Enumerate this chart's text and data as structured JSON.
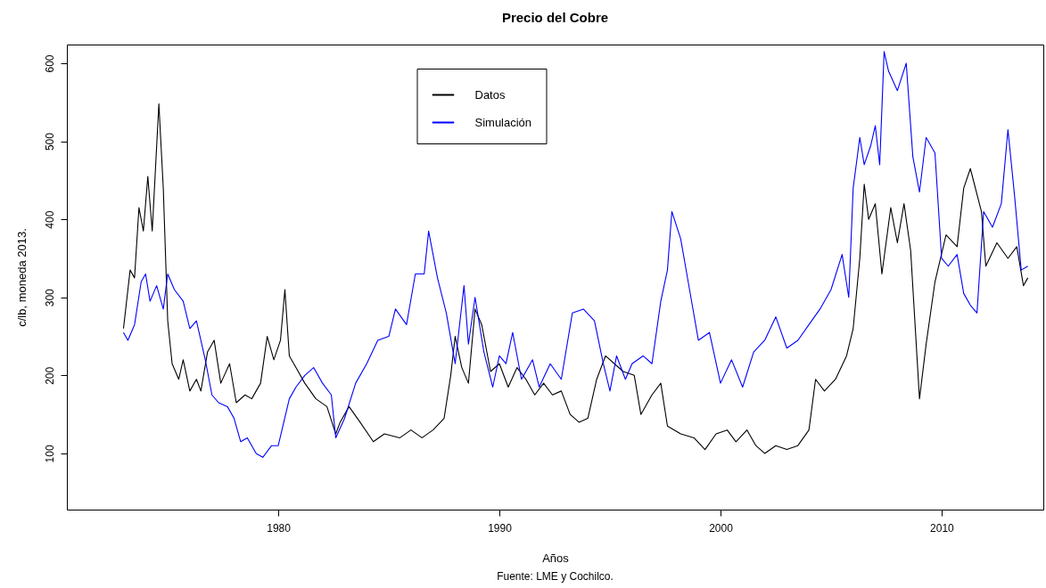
{
  "chart_data": {
    "type": "line",
    "title": "Precio del Cobre",
    "xlabel": "Años",
    "ylabel": "c/lb, moneda 2013.",
    "annotations": [
      "Fuente: LME y Cochilco."
    ],
    "xlim": [
      1970.44,
      2014.6
    ],
    "ylim": [
      28,
      624
    ],
    "xticks": [
      1980,
      1990,
      2000,
      2010
    ],
    "yticks": [
      100,
      200,
      300,
      400,
      500,
      600
    ],
    "grid": false,
    "legend": "top",
    "marker": "none",
    "line_style": "solid",
    "series": [
      {
        "name": "Datos",
        "color": "#000000",
        "x": [
          1973.0,
          1973.3,
          1973.5,
          1973.7,
          1973.9,
          1974.1,
          1974.3,
          1974.6,
          1974.8,
          1975.0,
          1975.2,
          1975.5,
          1975.7,
          1976.0,
          1976.3,
          1976.5,
          1976.8,
          1977.1,
          1977.4,
          1977.8,
          1978.1,
          1978.5,
          1978.8,
          1979.2,
          1979.5,
          1979.8,
          1980.1,
          1980.3,
          1980.5,
          1980.8,
          1981.2,
          1981.7,
          1982.2,
          1982.6,
          1982.8,
          1983.2,
          1983.7,
          1984.3,
          1984.8,
          1985.5,
          1986.0,
          1986.5,
          1987.0,
          1987.5,
          1987.8,
          1988.0,
          1988.3,
          1988.6,
          1988.9,
          1989.2,
          1989.6,
          1990.0,
          1990.4,
          1990.8,
          1991.2,
          1991.6,
          1992.0,
          1992.4,
          1992.8,
          1993.2,
          1993.6,
          1994.0,
          1994.4,
          1994.8,
          1995.2,
          1995.6,
          1996.1,
          1996.4,
          1996.9,
          1997.3,
          1997.6,
          1998.2,
          1998.8,
          1999.3,
          1999.8,
          2000.3,
          2000.7,
          2001.2,
          2001.6,
          2002.0,
          2002.5,
          2003.0,
          2003.5,
          2004.0,
          2004.3,
          2004.7,
          2005.2,
          2005.7,
          2006.0,
          2006.3,
          2006.5,
          2006.7,
          2007.0,
          2007.3,
          2007.7,
          2008.0,
          2008.3,
          2008.6,
          2009.0,
          2009.3,
          2009.7,
          2010.2,
          2010.7,
          2011.0,
          2011.3,
          2011.8,
          2012.0,
          2012.5,
          2013.0,
          2013.4,
          2013.7,
          2013.9
        ],
        "values": [
          260,
          335,
          325,
          415,
          385,
          455,
          385,
          548,
          440,
          270,
          215,
          195,
          220,
          180,
          195,
          180,
          230,
          245,
          190,
          215,
          165,
          175,
          170,
          190,
          250,
          220,
          245,
          310,
          225,
          210,
          190,
          170,
          160,
          125,
          140,
          160,
          140,
          115,
          125,
          120,
          130,
          120,
          130,
          145,
          200,
          250,
          210,
          190,
          285,
          265,
          205,
          215,
          185,
          210,
          195,
          175,
          190,
          175,
          180,
          150,
          140,
          145,
          195,
          225,
          215,
          205,
          200,
          150,
          175,
          190,
          135,
          125,
          120,
          105,
          125,
          130,
          115,
          130,
          110,
          100,
          110,
          105,
          110,
          130,
          195,
          180,
          195,
          225,
          260,
          350,
          445,
          400,
          420,
          330,
          415,
          370,
          420,
          360,
          170,
          240,
          320,
          380,
          365,
          440,
          465,
          410,
          340,
          370,
          350,
          365,
          315,
          325
        ]
      },
      {
        "name": "Simulación",
        "color": "#0000ff",
        "x": [
          1973.0,
          1973.2,
          1973.5,
          1973.8,
          1974.0,
          1974.2,
          1974.5,
          1974.8,
          1975.0,
          1975.3,
          1975.7,
          1976.0,
          1976.3,
          1976.7,
          1977.0,
          1977.3,
          1977.7,
          1978.0,
          1978.3,
          1978.6,
          1979.0,
          1979.3,
          1979.7,
          1980.0,
          1980.5,
          1980.8,
          1981.2,
          1981.6,
          1982.0,
          1982.4,
          1982.6,
          1983.0,
          1983.5,
          1984.0,
          1984.5,
          1985.0,
          1985.3,
          1985.8,
          1986.2,
          1986.6,
          1986.8,
          1987.2,
          1987.6,
          1988.0,
          1988.4,
          1988.6,
          1988.9,
          1989.3,
          1989.7,
          1990.0,
          1990.3,
          1990.6,
          1991.0,
          1991.5,
          1991.8,
          1992.3,
          1992.8,
          1993.3,
          1993.8,
          1994.3,
          1994.7,
          1995.0,
          1995.3,
          1995.7,
          1996.0,
          1996.5,
          1996.9,
          1997.3,
          1997.6,
          1997.8,
          1998.2,
          1998.6,
          1999.0,
          1999.5,
          2000.0,
          2000.5,
          2001.0,
          2001.5,
          2002.0,
          2002.5,
          2003.0,
          2003.5,
          2004.0,
          2004.5,
          2005.0,
          2005.5,
          2005.8,
          2006.0,
          2006.3,
          2006.5,
          2006.8,
          2007.0,
          2007.2,
          2007.4,
          2007.6,
          2008.0,
          2008.4,
          2008.7,
          2009.0,
          2009.3,
          2009.7,
          2010.0,
          2010.3,
          2010.7,
          2011.0,
          2011.3,
          2011.6,
          2011.9,
          2012.3,
          2012.7,
          2013.0,
          2013.3,
          2013.6,
          2013.9
        ],
        "values": [
          255,
          245,
          265,
          320,
          330,
          295,
          315,
          285,
          330,
          310,
          295,
          260,
          270,
          220,
          175,
          165,
          160,
          145,
          115,
          120,
          100,
          95,
          110,
          110,
          170,
          185,
          200,
          210,
          190,
          175,
          120,
          145,
          190,
          215,
          245,
          250,
          285,
          265,
          330,
          330,
          385,
          325,
          280,
          215,
          315,
          240,
          300,
          230,
          185,
          225,
          215,
          255,
          195,
          220,
          185,
          215,
          195,
          280,
          285,
          270,
          215,
          180,
          225,
          195,
          215,
          225,
          215,
          295,
          335,
          410,
          375,
          310,
          245,
          255,
          190,
          220,
          185,
          230,
          245,
          275,
          235,
          245,
          265,
          285,
          310,
          355,
          300,
          440,
          505,
          470,
          495,
          520,
          470,
          615,
          590,
          565,
          600,
          480,
          435,
          505,
          485,
          350,
          340,
          355,
          305,
          290,
          280,
          410,
          390,
          420,
          515,
          430,
          335,
          340
        ]
      }
    ]
  }
}
